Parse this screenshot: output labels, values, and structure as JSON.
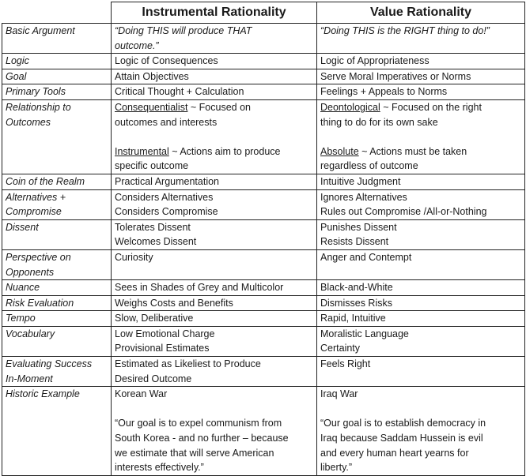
{
  "header": {
    "col1": "",
    "col2": "Instrumental Rationality",
    "col3": "Value Rationality"
  },
  "rows": [
    {
      "label": [
        "Basic Argument"
      ],
      "instrumental": [
        "“Doing THIS will produce THAT",
        "outcome.”"
      ],
      "value": [
        "“Doing THIS is the RIGHT thing to do!”"
      ]
    },
    {
      "label": [
        "Logic"
      ],
      "instrumental": [
        "Logic of Consequences"
      ],
      "value": [
        "Logic of Appropriateness"
      ]
    },
    {
      "label": [
        "Goal"
      ],
      "instrumental": [
        "Attain Objectives"
      ],
      "value": [
        "Serve Moral Imperatives or Norms"
      ]
    },
    {
      "label": [
        "Primary Tools"
      ],
      "instrumental": [
        "Critical Thought + Calculation"
      ],
      "value": [
        "Feelings + Appeals to Norms"
      ]
    },
    {
      "label": [
        "Relationship to",
        "Outcomes"
      ],
      "instrumental": {
        "term1": "Consequentialist",
        "text1": " ~ Focused on",
        "line2": "outcomes and interests",
        "term2": "Instrumental",
        "text2": " ~ Actions aim to produce",
        "line4": "specific outcome"
      },
      "value": {
        "term1": "Deontological",
        "text1": " ~ Focused on the right",
        "line2": "thing to do for its own sake",
        "term2": "Absolute",
        "text2": " ~ Actions must be taken",
        "line4": "regardless of outcome"
      }
    },
    {
      "label": [
        "Coin of the Realm"
      ],
      "instrumental": [
        "Practical Argumentation"
      ],
      "value": [
        "Intuitive Judgment"
      ]
    },
    {
      "label": [
        "Alternatives +",
        "Compromise"
      ],
      "instrumental": [
        "Considers Alternatives",
        "Considers Compromise"
      ],
      "value": [
        "Ignores Alternatives",
        "Rules out Compromise /All-or-Nothing"
      ]
    },
    {
      "label": [
        "Dissent"
      ],
      "instrumental": [
        "Tolerates Dissent",
        "Welcomes Dissent"
      ],
      "value": [
        "Punishes Dissent",
        "Resists Dissent"
      ]
    },
    {
      "label": [
        "Perspective on",
        "Opponents"
      ],
      "instrumental": [
        "Curiosity"
      ],
      "value": [
        "Anger and Contempt"
      ]
    },
    {
      "label": [
        "Nuance"
      ],
      "instrumental": [
        "Sees in Shades of Grey and Multicolor"
      ],
      "value": [
        "Black-and-White"
      ]
    },
    {
      "label": [
        "Risk Evaluation"
      ],
      "instrumental": [
        "Weighs Costs and Benefits"
      ],
      "value": [
        "Dismisses Risks"
      ]
    },
    {
      "label": [
        "Tempo"
      ],
      "instrumental": [
        "Slow, Deliberative"
      ],
      "value": [
        "Rapid, Intuitive"
      ]
    },
    {
      "label": [
        "Vocabulary"
      ],
      "instrumental": [
        "Low Emotional Charge",
        "Provisional Estimates"
      ],
      "value": [
        "Moralistic Language",
        "Certainty"
      ]
    },
    {
      "label": [
        "Evaluating Success",
        "In-Moment"
      ],
      "instrumental": [
        "Estimated as Likeliest to Produce",
        "Desired Outcome"
      ],
      "value": [
        "Feels Right"
      ]
    },
    {
      "label": [
        "Historic Example"
      ],
      "instrumental": {
        "example": "Korean War",
        "quote": [
          "“Our goal is to expel communism from",
          "South Korea - and no further – because",
          "we estimate that will serve American",
          "interests effectively.”"
        ]
      },
      "value": {
        "example": "Iraq War",
        "quote": [
          "“Our goal is to establish democracy in",
          "Iraq because Saddam Hussein is evil",
          "and every human heart yearns for",
          "liberty.”"
        ]
      }
    }
  ]
}
